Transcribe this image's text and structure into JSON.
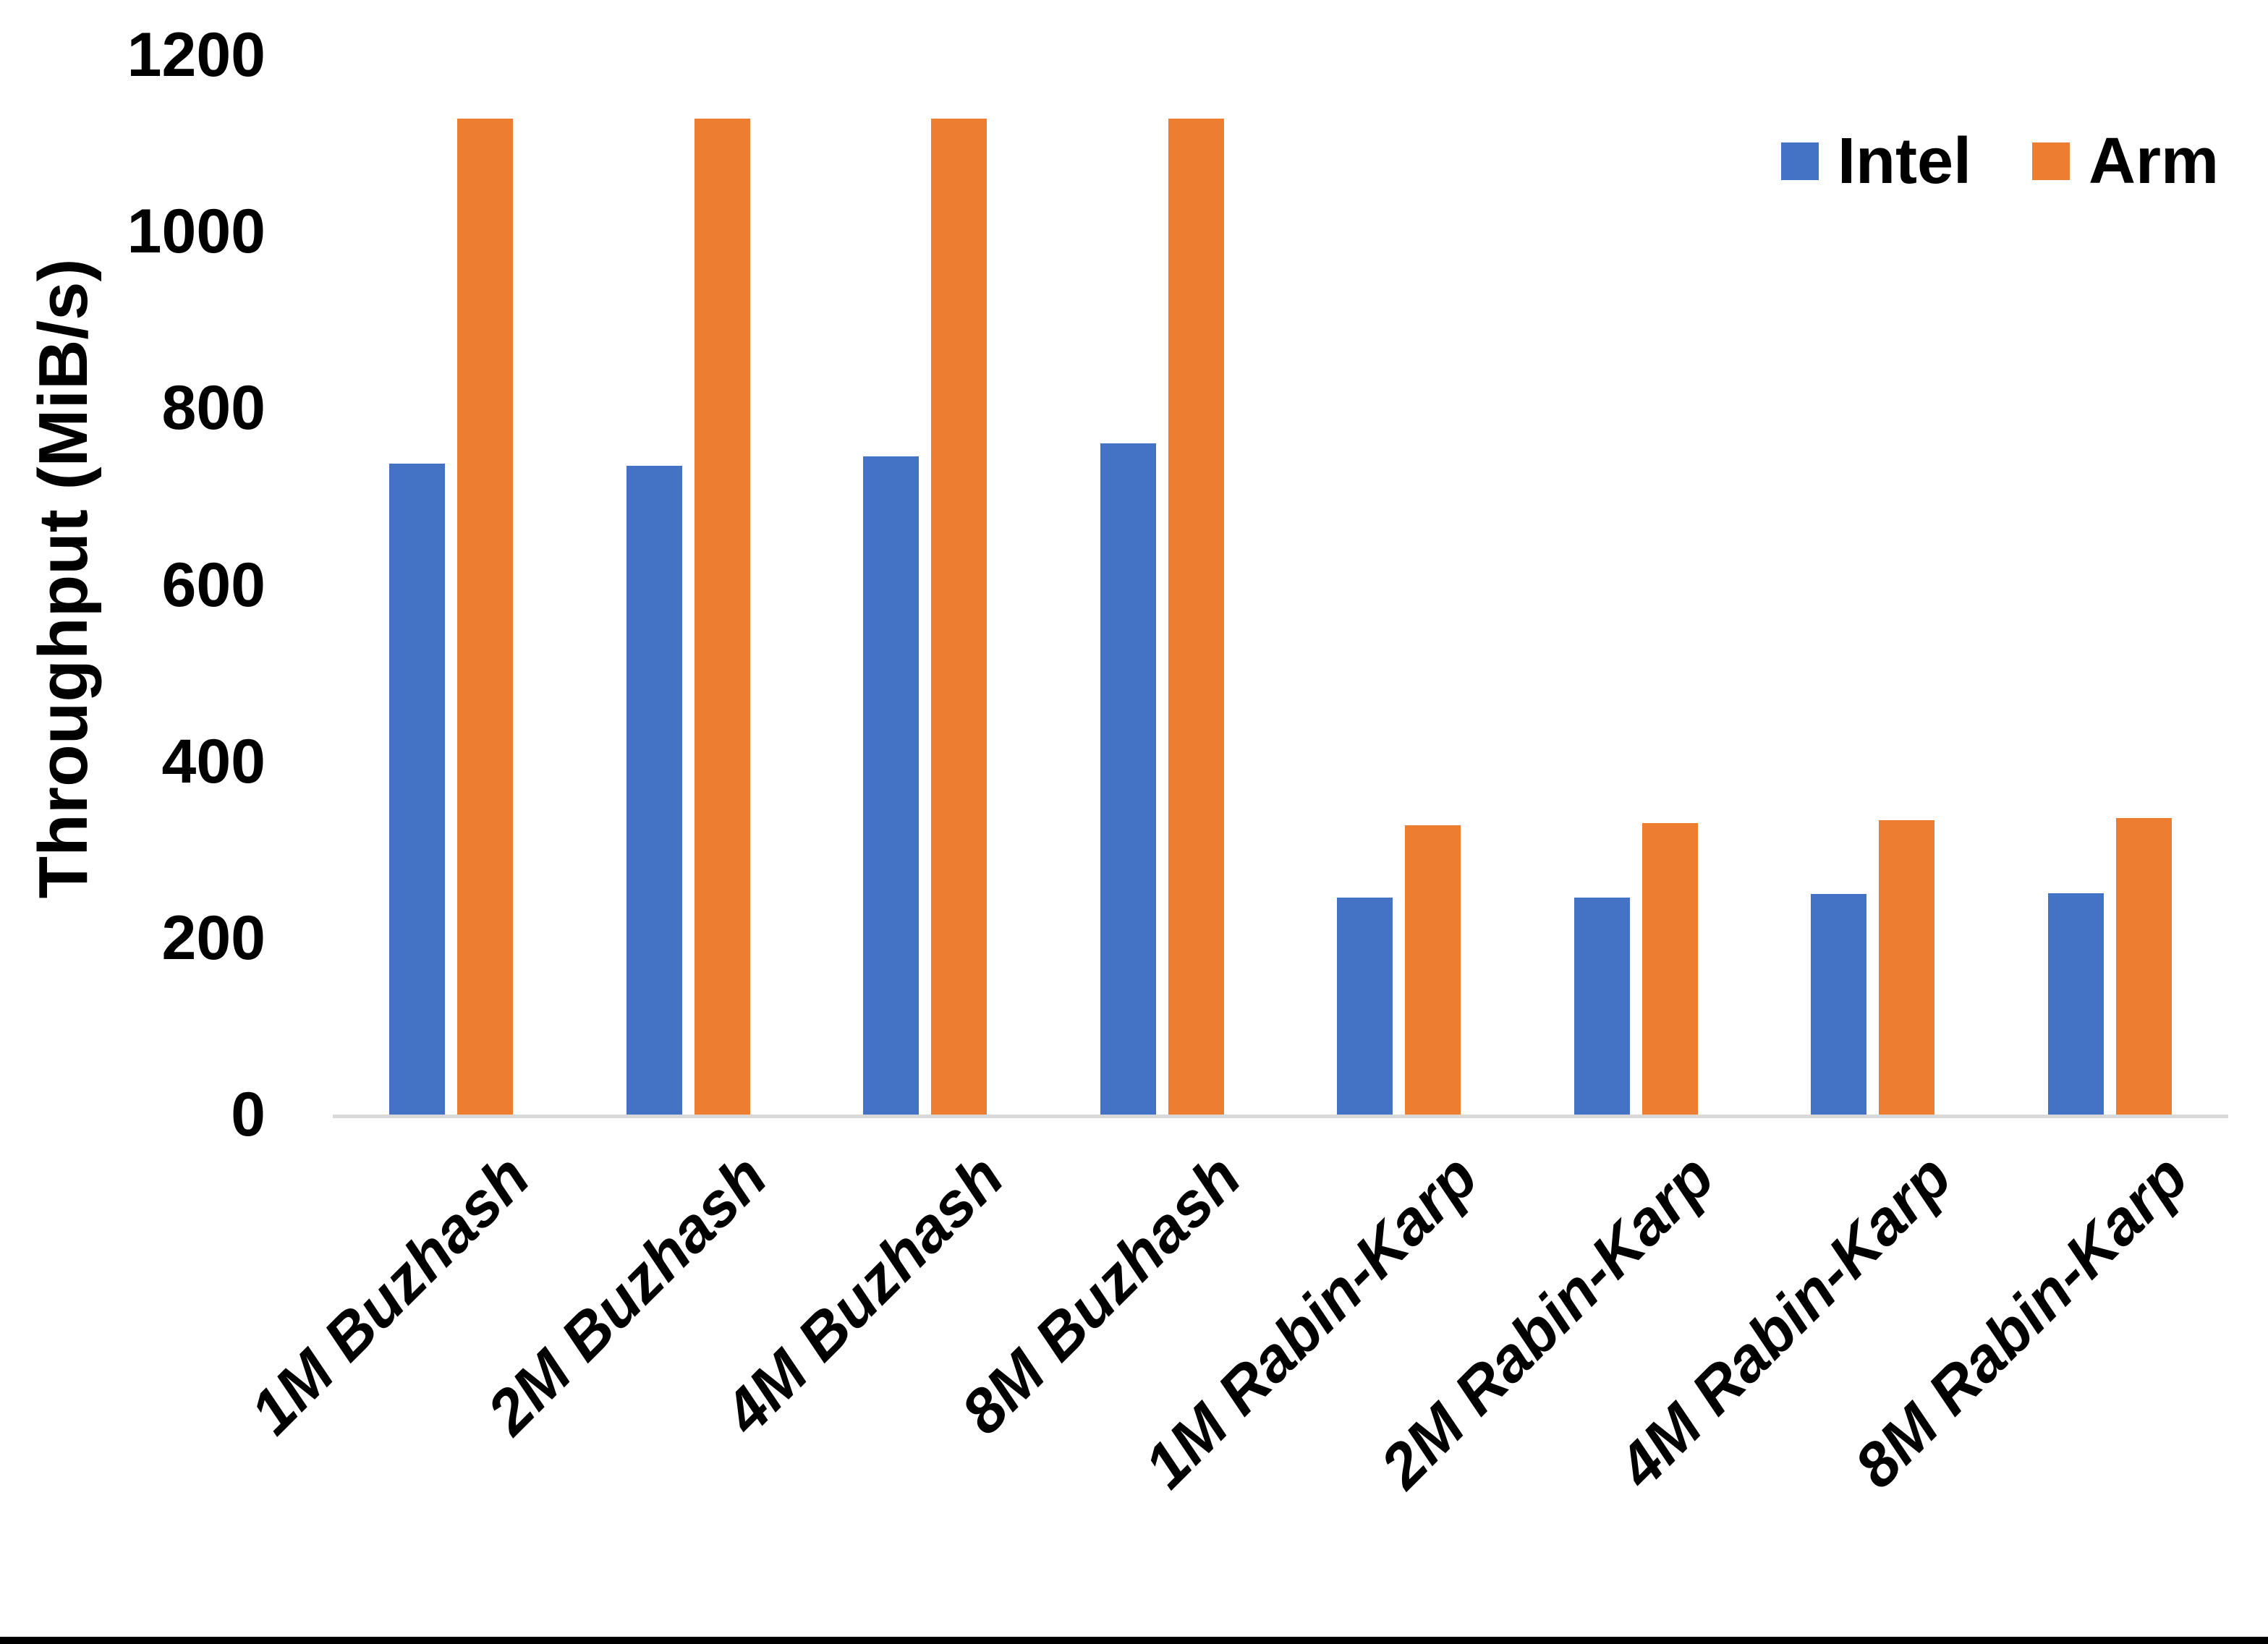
{
  "chart_data": {
    "type": "bar",
    "title": "",
    "ylabel": "Throughput (MiB/s)",
    "xlabel": "",
    "ylim": [
      0,
      1200
    ],
    "yticks": [
      0,
      200,
      400,
      600,
      800,
      1000,
      1200
    ],
    "grid": false,
    "legend_position": "top-right",
    "categories": [
      "1M Buzhash",
      "2M Buzhash",
      "4M Buzhash",
      "8M Buzhash",
      "1M Rabin-Karp",
      "2M Rabin-Karp",
      "4M Rabin-Karp",
      "8M Rabin-Karp"
    ],
    "series": [
      {
        "name": "Intel",
        "color": "#4472C4",
        "values": [
          737,
          735,
          745,
          760,
          246,
          246,
          250,
          251
        ]
      },
      {
        "name": "Arm",
        "color": "#ED7D31",
        "values": [
          1128,
          1128,
          1128,
          1128,
          328,
          330,
          333,
          336
        ]
      }
    ]
  },
  "colors": {
    "axis_line": "#D9D9D9",
    "text": "#000000",
    "background": "#FFFFFF",
    "bottom_border": "#000000"
  }
}
